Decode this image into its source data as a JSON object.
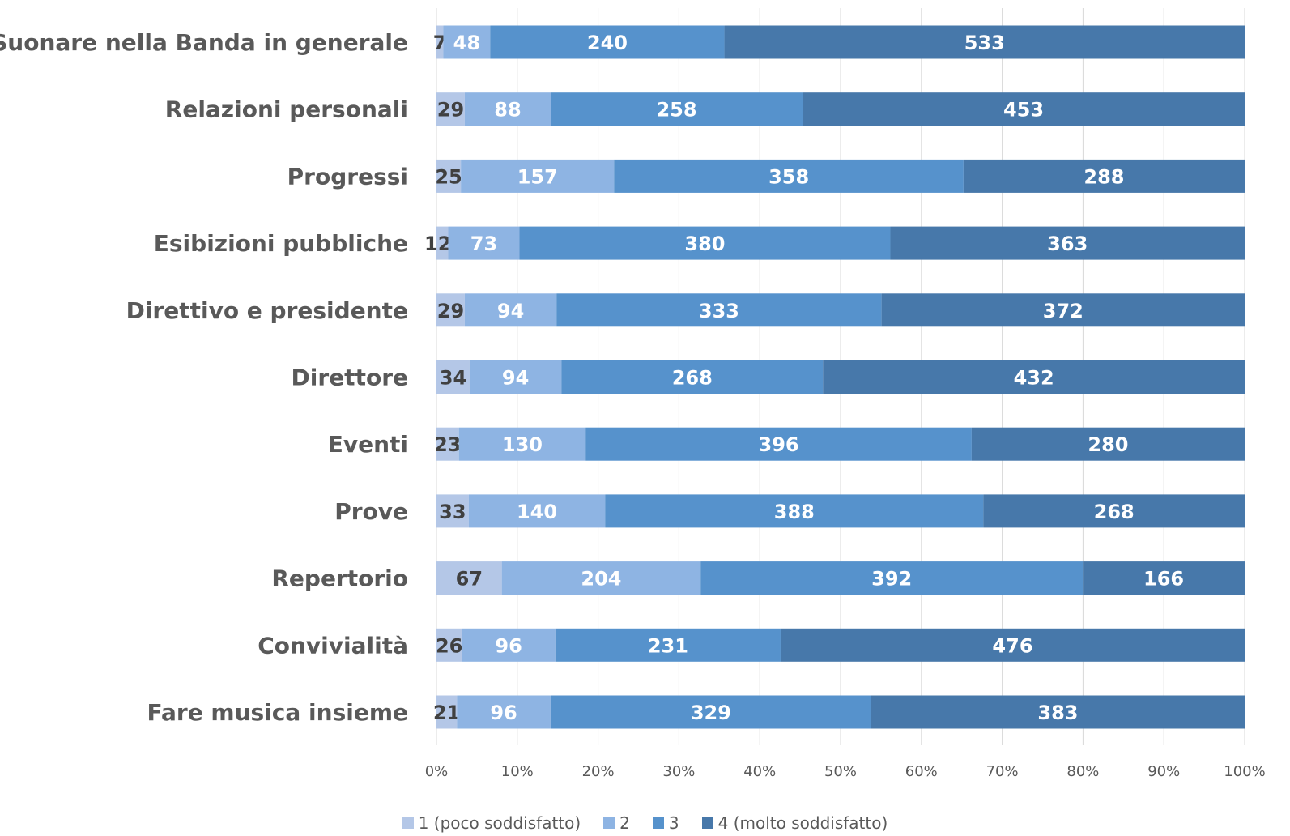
{
  "chart_data": {
    "type": "bar",
    "orientation": "horizontal",
    "stacking": "percent",
    "title": "",
    "categories": [
      "Suonare nella Banda in generale",
      "Relazioni personali",
      "Progressi",
      "Esibizioni pubbliche",
      "Direttivo e presidente",
      "Direttore",
      "Eventi",
      "Prove",
      "Repertorio",
      "Convivialità",
      "Fare musica insieme"
    ],
    "series": [
      {
        "name": "1 (poco soddisfatto)",
        "color": "#b4c7e7",
        "label_color": "#404040",
        "values": [
          7,
          29,
          25,
          12,
          29,
          34,
          23,
          33,
          67,
          26,
          21
        ]
      },
      {
        "name": "2",
        "color": "#8eb4e3",
        "label_color": "#ffffff",
        "values": [
          48,
          88,
          157,
          73,
          94,
          94,
          130,
          140,
          204,
          96,
          96
        ]
      },
      {
        "name": "3",
        "color": "#5692cc",
        "label_color": "#ffffff",
        "values": [
          240,
          258,
          358,
          380,
          333,
          268,
          396,
          388,
          392,
          231,
          329
        ]
      },
      {
        "name": "4 (molto soddisfatto)",
        "color": "#4778aa",
        "label_color": "#ffffff",
        "values": [
          533,
          453,
          288,
          363,
          372,
          432,
          280,
          268,
          166,
          476,
          383
        ]
      }
    ],
    "x_ticks": [
      "0%",
      "10%",
      "20%",
      "30%",
      "40%",
      "50%",
      "60%",
      "70%",
      "80%",
      "90%",
      "100%"
    ],
    "xlim": [
      0,
      100
    ],
    "grid": "vertical",
    "legend_position": "bottom"
  }
}
